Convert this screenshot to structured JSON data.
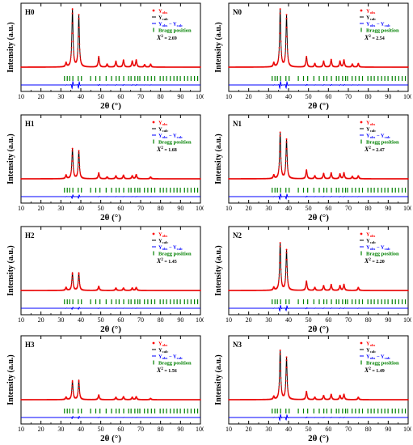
{
  "figure": {
    "xlabel": "2θ (°)",
    "ylabel": "Intensity (a.u.)",
    "xticks": [
      "10",
      "20",
      "30",
      "40",
      "50",
      "60",
      "70",
      "80",
      "90",
      "100"
    ],
    "legend": {
      "obs": "Y",
      "obs_sub": "obs",
      "calc": "Y",
      "calc_sub": "calc",
      "diff": "Y",
      "diff_sub": "obs",
      "diff_mid": " − Y",
      "diff_sub2": "calc",
      "bragg": "Bragg position",
      "chi_prefix": "X",
      "chi_sup": "2"
    },
    "colors": {
      "observed": "#ff0000",
      "calculated": "#000000",
      "difference": "#0000ff",
      "bragg": "#008000"
    }
  },
  "chart_data": [
    {
      "type": "line",
      "panel": "H0",
      "chi2": "= 2.69",
      "xlim": [
        10,
        100
      ],
      "x_unit": "2θ (°)",
      "ylabel": "Intensity (a.u.)",
      "peaks": [
        {
          "x": 32.6,
          "y": 0.07
        },
        {
          "x": 35.8,
          "y": 1.0
        },
        {
          "x": 39.0,
          "y": 0.9
        },
        {
          "x": 49.0,
          "y": 0.18
        },
        {
          "x": 53.2,
          "y": 0.05
        },
        {
          "x": 57.6,
          "y": 0.1
        },
        {
          "x": 61.4,
          "y": 0.12
        },
        {
          "x": 65.8,
          "y": 0.1
        },
        {
          "x": 67.8,
          "y": 0.12
        },
        {
          "x": 72.0,
          "y": 0.04
        },
        {
          "x": 75.0,
          "y": 0.05
        }
      ]
    },
    {
      "type": "line",
      "panel": "N0",
      "chi2": "= 2.54",
      "xlim": [
        10,
        100
      ],
      "x_unit": "2θ (°)",
      "ylabel": "Intensity (a.u.)",
      "peaks": [
        {
          "x": 32.6,
          "y": 0.07
        },
        {
          "x": 35.8,
          "y": 1.0
        },
        {
          "x": 39.0,
          "y": 0.9
        },
        {
          "x": 49.0,
          "y": 0.18
        },
        {
          "x": 53.2,
          "y": 0.06
        },
        {
          "x": 57.6,
          "y": 0.1
        },
        {
          "x": 61.4,
          "y": 0.13
        },
        {
          "x": 65.8,
          "y": 0.1
        },
        {
          "x": 67.8,
          "y": 0.12
        },
        {
          "x": 72.0,
          "y": 0.05
        },
        {
          "x": 75.0,
          "y": 0.06
        }
      ]
    },
    {
      "type": "line",
      "panel": "H1",
      "chi2": "= 1.68",
      "xlim": [
        10,
        100
      ],
      "x_unit": "2θ (°)",
      "ylabel": "Intensity (a.u.)",
      "peaks": [
        {
          "x": 32.6,
          "y": 0.06
        },
        {
          "x": 35.8,
          "y": 0.52
        },
        {
          "x": 39.0,
          "y": 0.48
        },
        {
          "x": 49.0,
          "y": 0.1
        },
        {
          "x": 53.2,
          "y": 0.03
        },
        {
          "x": 57.6,
          "y": 0.05
        },
        {
          "x": 61.4,
          "y": 0.06
        },
        {
          "x": 65.8,
          "y": 0.05
        },
        {
          "x": 67.8,
          "y": 0.07
        },
        {
          "x": 75.0,
          "y": 0.03
        }
      ]
    },
    {
      "type": "line",
      "panel": "N1",
      "chi2": "= 2.47",
      "xlim": [
        10,
        100
      ],
      "x_unit": "2θ (°)",
      "ylabel": "Intensity (a.u.)",
      "peaks": [
        {
          "x": 32.6,
          "y": 0.06
        },
        {
          "x": 35.8,
          "y": 0.8
        },
        {
          "x": 39.0,
          "y": 0.68
        },
        {
          "x": 49.0,
          "y": 0.15
        },
        {
          "x": 53.2,
          "y": 0.05
        },
        {
          "x": 57.6,
          "y": 0.09
        },
        {
          "x": 61.4,
          "y": 0.1
        },
        {
          "x": 65.8,
          "y": 0.08
        },
        {
          "x": 67.8,
          "y": 0.1
        },
        {
          "x": 72.0,
          "y": 0.04
        },
        {
          "x": 75.0,
          "y": 0.05
        }
      ]
    },
    {
      "type": "line",
      "panel": "H2",
      "chi2": "= 1.45",
      "xlim": [
        10,
        100
      ],
      "x_unit": "2θ (°)",
      "ylabel": "Intensity (a.u.)",
      "peaks": [
        {
          "x": 32.6,
          "y": 0.05
        },
        {
          "x": 35.8,
          "y": 0.3
        },
        {
          "x": 39.0,
          "y": 0.3
        },
        {
          "x": 49.0,
          "y": 0.07
        },
        {
          "x": 57.6,
          "y": 0.04
        },
        {
          "x": 61.4,
          "y": 0.04
        },
        {
          "x": 65.8,
          "y": 0.04
        },
        {
          "x": 67.8,
          "y": 0.05
        }
      ]
    },
    {
      "type": "line",
      "panel": "N2",
      "chi2": "= 2.20",
      "xlim": [
        10,
        100
      ],
      "x_unit": "2θ (°)",
      "ylabel": "Intensity (a.u.)",
      "peaks": [
        {
          "x": 32.6,
          "y": 0.05
        },
        {
          "x": 35.8,
          "y": 0.82
        },
        {
          "x": 39.0,
          "y": 0.7
        },
        {
          "x": 49.0,
          "y": 0.16
        },
        {
          "x": 53.2,
          "y": 0.05
        },
        {
          "x": 57.6,
          "y": 0.08
        },
        {
          "x": 61.4,
          "y": 0.1
        },
        {
          "x": 65.8,
          "y": 0.08
        },
        {
          "x": 67.8,
          "y": 0.1
        },
        {
          "x": 75.0,
          "y": 0.05
        }
      ]
    },
    {
      "type": "line",
      "panel": "H3",
      "chi2": "= 1.56",
      "xlim": [
        10,
        100
      ],
      "x_unit": "2θ (°)",
      "ylabel": "Intensity (a.u.)",
      "peaks": [
        {
          "x": 32.6,
          "y": 0.04
        },
        {
          "x": 35.8,
          "y": 0.32
        },
        {
          "x": 39.0,
          "y": 0.33
        },
        {
          "x": 49.0,
          "y": 0.08
        },
        {
          "x": 57.6,
          "y": 0.04
        },
        {
          "x": 61.4,
          "y": 0.05
        },
        {
          "x": 65.8,
          "y": 0.04
        },
        {
          "x": 67.8,
          "y": 0.05
        },
        {
          "x": 75.0,
          "y": 0.02
        }
      ]
    },
    {
      "type": "line",
      "panel": "N3",
      "chi2": "= 1.49",
      "xlim": [
        10,
        100
      ],
      "x_unit": "2θ (°)",
      "ylabel": "Intensity (a.u.)",
      "peaks": [
        {
          "x": 32.6,
          "y": 0.05
        },
        {
          "x": 35.8,
          "y": 0.85
        },
        {
          "x": 39.0,
          "y": 0.73
        },
        {
          "x": 49.0,
          "y": 0.14
        },
        {
          "x": 53.2,
          "y": 0.04
        },
        {
          "x": 57.6,
          "y": 0.07
        },
        {
          "x": 61.4,
          "y": 0.09
        },
        {
          "x": 65.8,
          "y": 0.07
        },
        {
          "x": 67.8,
          "y": 0.09
        },
        {
          "x": 75.0,
          "y": 0.04
        }
      ]
    }
  ],
  "bragg_positions": [
    31.8,
    33.2,
    34.4,
    36.0,
    38.7,
    40.3,
    44.9,
    47.5,
    49.6,
    52.7,
    55.4,
    57.7,
    59.2,
    61.5,
    64.0,
    65.2,
    67.1,
    68.6,
    69.6,
    71.9,
    73.6,
    75.4,
    77.1,
    79.8,
    81.4,
    83.0,
    84.9,
    86.7,
    88.3,
    89.9,
    92.0,
    93.6,
    95.3,
    97.0,
    98.6
  ]
}
